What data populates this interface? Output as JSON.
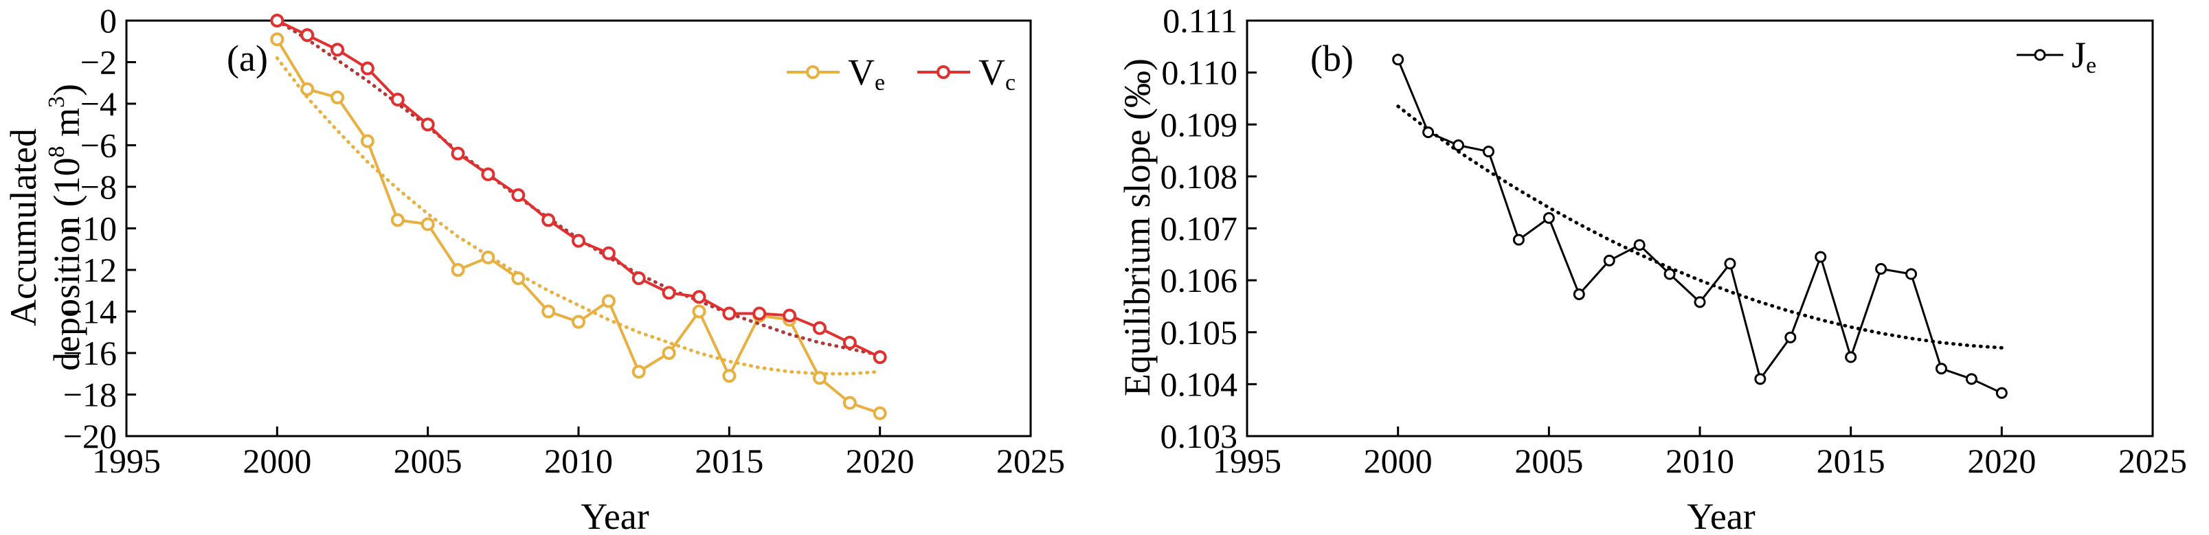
{
  "chart_data": [
    {
      "type": "line",
      "panel_label": "(a)",
      "xlabel": "Year",
      "ylabel_line1": "Accumulated",
      "ylabel_line2": "deposition (10",
      "ylabel_sup": "8",
      "ylabel_tail": " m",
      "ylabel_sup2": "3",
      "ylabel_end": ")",
      "xlim": [
        1995,
        2025
      ],
      "ylim": [
        -20,
        0
      ],
      "xticks": [
        "1995",
        "2000",
        "2005",
        "2010",
        "2015",
        "2020",
        "2025"
      ],
      "yticks": [
        "0",
        "−2",
        "−4",
        "−6",
        "−8",
        "−10",
        "−12",
        "−14",
        "−16",
        "−18",
        "−20"
      ],
      "grid": false,
      "legend_position": "top-right",
      "x": [
        2000,
        2001,
        2002,
        2003,
        2004,
        2005,
        2006,
        2007,
        2008,
        2009,
        2010,
        2011,
        2012,
        2013,
        2014,
        2015,
        2016,
        2017,
        2018,
        2019,
        2020
      ],
      "series": [
        {
          "name": "V",
          "subscript": "e",
          "color": "#e8b040",
          "values": [
            -0.9,
            -3.3,
            -3.7,
            -5.8,
            -9.6,
            -9.8,
            -12.0,
            -11.4,
            -12.4,
            -14.0,
            -14.5,
            -13.5,
            -16.9,
            -16.0,
            -14.0,
            -17.1,
            -14.2,
            -14.4,
            -17.2,
            -18.4,
            -18.9
          ],
          "trend": {
            "style": "dotted",
            "values": [
              -1.8,
              -3.7,
              -5.3,
              -6.8,
              -8.1,
              -9.3,
              -10.4,
              -11.3,
              -12.2,
              -13.0,
              -13.7,
              -14.4,
              -15.0,
              -15.5,
              -16.0,
              -16.4,
              -16.7,
              -16.9,
              -17.0,
              -17.0,
              -16.9
            ]
          }
        },
        {
          "name": "V",
          "subscript": "c",
          "color": "#e03030",
          "values": [
            0.0,
            -0.7,
            -1.4,
            -2.3,
            -3.8,
            -5.0,
            -6.4,
            -7.4,
            -8.4,
            -9.6,
            -10.6,
            -11.2,
            -12.4,
            -13.1,
            -13.3,
            -14.1,
            -14.1,
            -14.2,
            -14.8,
            -15.5,
            -16.2
          ],
          "trend": {
            "style": "dotted",
            "values": [
              0.0,
              -0.9,
              -1.9,
              -2.9,
              -4.0,
              -5.1,
              -6.3,
              -7.4,
              -8.5,
              -9.5,
              -10.5,
              -11.4,
              -12.2,
              -12.9,
              -13.5,
              -14.1,
              -14.6,
              -15.1,
              -15.5,
              -15.8,
              -16.1
            ]
          }
        }
      ]
    },
    {
      "type": "line",
      "panel_label": "(b)",
      "xlabel": "Year",
      "ylabel": "Equilibrium slope (‰)",
      "xlim": [
        1995,
        2025
      ],
      "ylim": [
        0.103,
        0.111
      ],
      "xticks": [
        "1995",
        "2000",
        "2005",
        "2010",
        "2015",
        "2020",
        "2025"
      ],
      "yticks": [
        "0.103",
        "0.104",
        "0.105",
        "0.106",
        "0.107",
        "0.108",
        "0.109",
        "0.110",
        "0.111"
      ],
      "grid": false,
      "legend_position": "top-right",
      "x": [
        2000,
        2001,
        2002,
        2003,
        2004,
        2005,
        2006,
        2007,
        2008,
        2009,
        2010,
        2011,
        2012,
        2013,
        2014,
        2015,
        2016,
        2017,
        2018,
        2019,
        2020
      ],
      "series": [
        {
          "name": "J",
          "subscript": "e",
          "color": "#000000",
          "values": [
            0.11025,
            0.10885,
            0.1086,
            0.10848,
            0.10678,
            0.1072,
            0.10573,
            0.10638,
            0.10668,
            0.10612,
            0.10558,
            0.10632,
            0.1041,
            0.1049,
            0.10645,
            0.10452,
            0.10622,
            0.10612,
            0.1043,
            0.1041,
            0.10383
          ],
          "trend": {
            "style": "dotted",
            "values": [
              0.10935,
              0.1089,
              0.10848,
              0.1081,
              0.10774,
              0.1074,
              0.10708,
              0.10678,
              0.1065,
              0.10624,
              0.106,
              0.10578,
              0.10558,
              0.1054,
              0.10524,
              0.1051,
              0.10498,
              0.10488,
              0.1048,
              0.10474,
              0.1047
            ]
          }
        }
      ]
    }
  ]
}
